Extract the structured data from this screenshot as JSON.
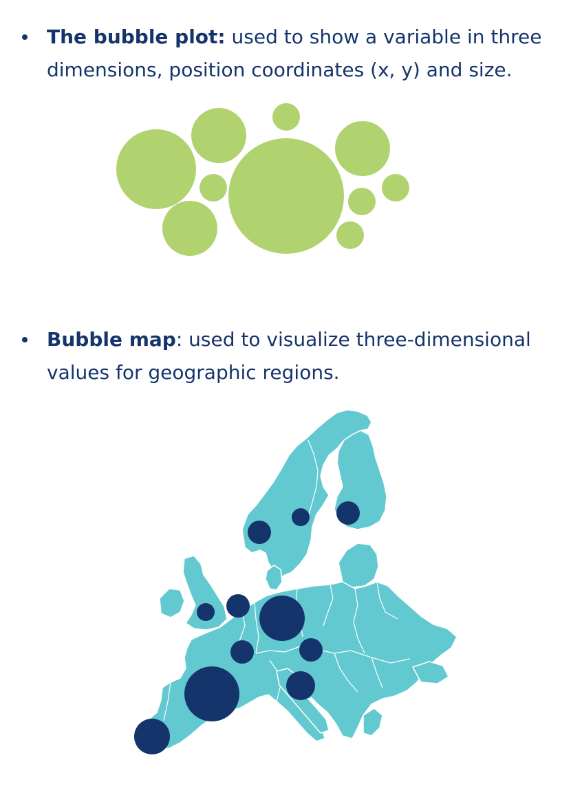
{
  "bullets": [
    {
      "term": "The bubble plot:",
      "rest": " used to show a variable in three dimensions, position coordinates (x, y) and size."
    },
    {
      "term": "Bubble map",
      "rest": ": used to visualize three-dimensional values for geographic regions."
    }
  ],
  "colors": {
    "text": "#15346b",
    "bubble_plot": "#b0d36f",
    "map_land": "#62c9d0",
    "map_borders": "#ffffff",
    "map_bubbles": "#15346b"
  },
  "icons": [
    "bullet-dot-icon",
    "europe-map-shape"
  ]
}
